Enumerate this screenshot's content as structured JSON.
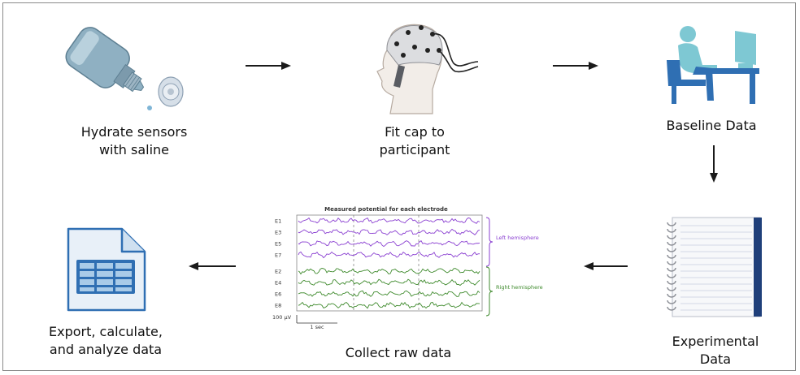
{
  "steps": {
    "hydrate": "Hydrate sensors\nwith saline",
    "fit_cap": "Fit cap to\nparticipant",
    "baseline": "Baseline Data",
    "experimental": "Experimental\nData",
    "collect": "Collect raw data",
    "export": "Export, calculate,\nand analyze data"
  },
  "eeg": {
    "title": "Measured potential for each electrode",
    "left_channels": [
      "E1",
      "E3",
      "E5",
      "E7"
    ],
    "right_channels": [
      "E2",
      "E4",
      "E6",
      "E8"
    ],
    "left_group": "Left hemisphere",
    "right_group": "Right hemisphere",
    "scale_voltage": "100 µV",
    "scale_time": "1 sec",
    "left_color": "#8a3fd1",
    "right_color": "#3e8a2c"
  },
  "colors": {
    "arrow": "#1a1a1a",
    "border": "#8a8a8a",
    "accent_blue": "#2f6fb3",
    "accent_teal": "#7ec8d3"
  }
}
